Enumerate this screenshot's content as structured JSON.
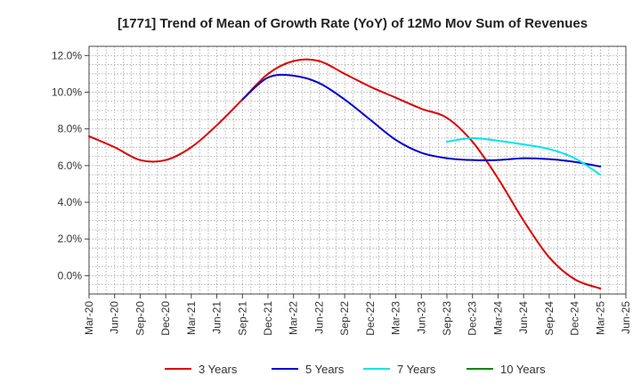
{
  "chart_data": {
    "type": "line",
    "title": "[1771]  Trend of Mean of Growth Rate (YoY) of 12Mo Mov Sum of Revenues",
    "xlabel": "",
    "ylabel": "",
    "x": [
      "Mar-20",
      "Jun-20",
      "Sep-20",
      "Dec-20",
      "Mar-21",
      "Jun-21",
      "Sep-21",
      "Dec-21",
      "Mar-22",
      "Jun-22",
      "Sep-22",
      "Dec-22",
      "Mar-23",
      "Jun-23",
      "Sep-23",
      "Dec-23",
      "Mar-24",
      "Jun-24",
      "Sep-24",
      "Dec-24",
      "Mar-25",
      "Jun-25"
    ],
    "ylim": [
      -1.0,
      12.5
    ],
    "yticks": [
      0,
      2,
      4,
      6,
      8,
      10,
      12
    ],
    "ytick_labels": [
      "0.0%",
      "2.0%",
      "4.0%",
      "6.0%",
      "8.0%",
      "10.0%",
      "12.0%"
    ],
    "grid": true,
    "legend_position": "bottom",
    "series": [
      {
        "name": "3 Years",
        "color": "#dd0000",
        "values": [
          7.6,
          7.0,
          6.3,
          6.3,
          7.0,
          8.2,
          9.6,
          11.0,
          11.7,
          11.7,
          11.0,
          10.3,
          9.7,
          9.1,
          8.6,
          7.3,
          5.3,
          3.0,
          1.0,
          -0.2,
          -0.7,
          null
        ]
      },
      {
        "name": "5 Years",
        "color": "#0000cc",
        "values": [
          null,
          null,
          null,
          null,
          null,
          null,
          9.6,
          10.8,
          10.9,
          10.5,
          9.6,
          8.5,
          7.4,
          6.7,
          6.4,
          6.3,
          6.3,
          6.4,
          6.35,
          6.2,
          5.95,
          null
        ]
      },
      {
        "name": "7 Years",
        "color": "#00e5ee",
        "values": [
          null,
          null,
          null,
          null,
          null,
          null,
          null,
          null,
          null,
          null,
          null,
          null,
          null,
          null,
          7.3,
          7.5,
          7.35,
          7.15,
          6.9,
          6.4,
          5.5,
          null
        ]
      },
      {
        "name": "10 Years",
        "color": "#008800",
        "values": [
          null,
          null,
          null,
          null,
          null,
          null,
          null,
          null,
          null,
          null,
          null,
          null,
          null,
          null,
          null,
          null,
          null,
          null,
          null,
          null,
          null,
          null
        ]
      }
    ]
  }
}
